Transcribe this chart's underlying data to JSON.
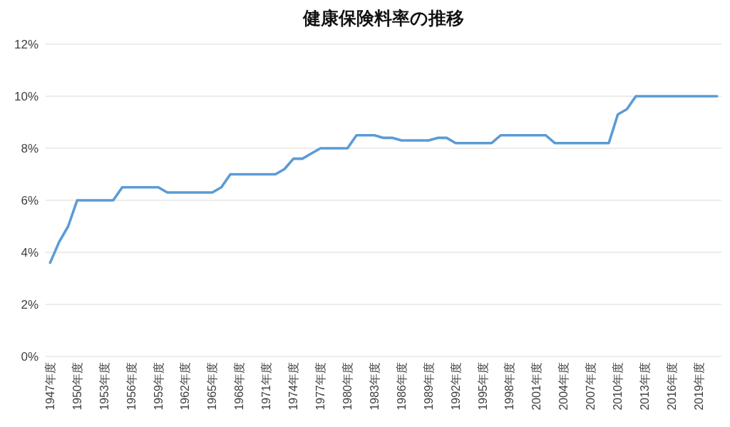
{
  "chart_data": {
    "type": "line",
    "title": "健康保険料率の推移",
    "categories": [
      "1947年度",
      null,
      null,
      "1950年度",
      null,
      null,
      "1953年度",
      null,
      null,
      "1956年度",
      null,
      null,
      "1959年度",
      null,
      null,
      "1962年度",
      null,
      null,
      "1965年度",
      null,
      null,
      "1968年度",
      null,
      null,
      "1971年度",
      null,
      null,
      "1974年度",
      null,
      null,
      "1977年度",
      null,
      null,
      "1980年度",
      null,
      null,
      "1983年度",
      null,
      null,
      "1986年度",
      null,
      null,
      "1989年度",
      null,
      null,
      "1992年度",
      null,
      null,
      "1995年度",
      null,
      null,
      "1998年度",
      null,
      null,
      "2001年度",
      null,
      null,
      "2004年度",
      null,
      null,
      "2007年度",
      null,
      null,
      "2010年度",
      null,
      null,
      "2013年度",
      null,
      null,
      "2016年度",
      null,
      null,
      "2019年度",
      null,
      null
    ],
    "values": [
      3.6,
      4.4,
      5.0,
      6.0,
      6.0,
      6.0,
      6.0,
      6.0,
      6.5,
      6.5,
      6.5,
      6.5,
      6.5,
      6.3,
      6.3,
      6.3,
      6.3,
      6.3,
      6.3,
      6.5,
      7.0,
      7.0,
      7.0,
      7.0,
      7.0,
      7.0,
      7.2,
      7.6,
      7.6,
      7.8,
      8.0,
      8.0,
      8.0,
      8.0,
      8.5,
      8.5,
      8.5,
      8.4,
      8.4,
      8.3,
      8.3,
      8.3,
      8.3,
      8.4,
      8.4,
      8.2,
      8.2,
      8.2,
      8.2,
      8.2,
      8.5,
      8.5,
      8.5,
      8.5,
      8.5,
      8.5,
      8.2,
      8.2,
      8.2,
      8.2,
      8.2,
      8.2,
      8.2,
      9.3,
      9.5,
      10.0,
      10.0,
      10.0,
      10.0,
      10.0,
      10.0,
      10.0,
      10.0,
      10.0,
      10.0
    ],
    "color": "#5b9bd5",
    "ylim": [
      0,
      12
    ],
    "yticks": [
      {
        "value": 0,
        "label": "0%"
      },
      {
        "value": 2,
        "label": "2%"
      },
      {
        "value": 4,
        "label": "4%"
      },
      {
        "value": 6,
        "label": "6%"
      },
      {
        "value": 8,
        "label": "8%"
      },
      {
        "value": 10,
        "label": "10%"
      },
      {
        "value": 12,
        "label": "12%"
      }
    ],
    "grid": "y",
    "line_style": "solid"
  }
}
